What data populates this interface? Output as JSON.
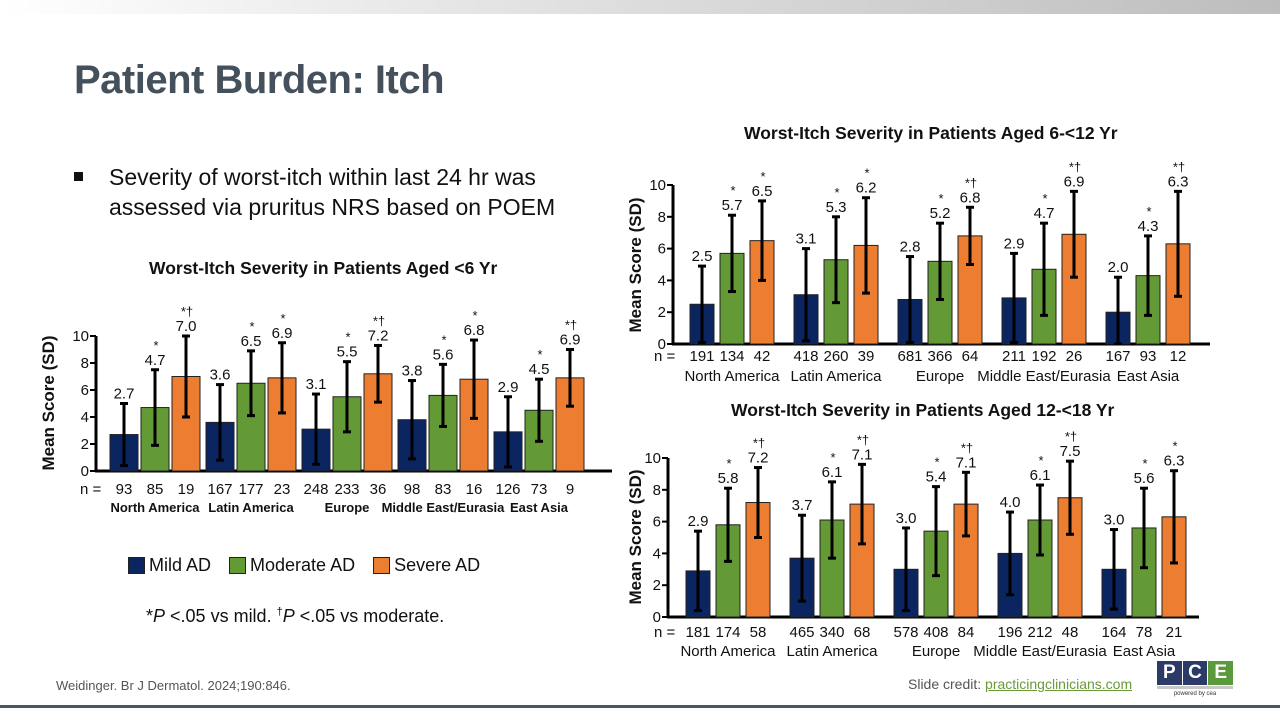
{
  "slide": {
    "title": "Patient Burden: Itch",
    "bullet": "Severity of worst-itch within last 24 hr was assessed via pruritus NRS based on POEM",
    "legend": [
      {
        "label": "Mild AD",
        "color": "#0b2561"
      },
      {
        "label": "Moderate AD",
        "color": "#649a36"
      },
      {
        "label": "Severe AD",
        "color": "#ed7d31"
      }
    ],
    "footnote": {
      "star": "*",
      "p1": "P",
      "t1": " <.05 vs mild. ",
      "dagger": "†",
      "p2": "P",
      "t2": " <.05 vs moderate."
    },
    "citation": "Weidinger. Br J Dermatol. 2024;190:846.",
    "credit_label": "Slide credit: ",
    "credit_link": "practicingclinicians.com",
    "logo": {
      "letters": [
        "P",
        "C",
        "E"
      ],
      "colors": [
        "#2b3a67",
        "#2b3a67",
        "#5a9a3c"
      ],
      "tagline": "powered by cea"
    }
  },
  "chart_data": [
    {
      "type": "bar",
      "title": "Worst-Itch Severity in Patients Aged <6 Yr",
      "ylabel": "Mean Score (SD)",
      "ylim": [
        0,
        10
      ],
      "yticks": [
        0,
        2,
        4,
        6,
        8,
        10
      ],
      "categories": [
        "North America",
        "Latin America",
        "Europe",
        "Middle East/Eurasia",
        "East Asia"
      ],
      "category_label_bold": true,
      "n_prefix": "n = ",
      "series": [
        {
          "name": "Mild AD",
          "values": [
            2.7,
            3.6,
            3.1,
            3.8,
            2.9
          ],
          "sd": [
            2.3,
            2.8,
            2.6,
            2.9,
            2.6
          ],
          "n": [
            93,
            167,
            248,
            98,
            126
          ],
          "sig": [
            "",
            "",
            "",
            "",
            ""
          ]
        },
        {
          "name": "Moderate AD",
          "values": [
            4.7,
            6.5,
            5.5,
            5.6,
            4.5
          ],
          "sd": [
            2.8,
            2.4,
            2.6,
            2.3,
            2.3
          ],
          "n": [
            85,
            177,
            233,
            83,
            73
          ],
          "sig": [
            "*",
            "*",
            "*",
            "*",
            "*"
          ]
        },
        {
          "name": "Severe AD",
          "values": [
            7.0,
            6.9,
            7.2,
            6.8,
            6.9
          ],
          "sd": [
            3.0,
            2.6,
            2.1,
            2.9,
            2.1
          ],
          "n": [
            19,
            23,
            36,
            16,
            9
          ],
          "sig": [
            "*†",
            "*",
            "*†",
            "*",
            "*†"
          ]
        }
      ]
    },
    {
      "type": "bar",
      "title": "Worst-Itch Severity in Patients Aged 6-<12 Yr",
      "ylabel": "Mean Score (SD)",
      "ylim": [
        0,
        10
      ],
      "yticks": [
        0,
        2,
        4,
        6,
        8,
        10
      ],
      "categories": [
        "North America",
        "Latin America",
        "Europe",
        "Middle East/Eurasia",
        "East Asia"
      ],
      "category_label_bold": false,
      "n_prefix": "n = ",
      "series": [
        {
          "name": "Mild AD",
          "values": [
            2.5,
            3.1,
            2.8,
            2.9,
            2.0
          ],
          "sd": [
            2.4,
            2.9,
            2.7,
            2.8,
            2.2
          ],
          "n": [
            191,
            418,
            681,
            211,
            167
          ],
          "sig": [
            "",
            "",
            "",
            "",
            ""
          ]
        },
        {
          "name": "Moderate AD",
          "values": [
            5.7,
            5.3,
            5.2,
            4.7,
            4.3
          ],
          "sd": [
            2.4,
            2.7,
            2.4,
            2.9,
            2.5
          ],
          "n": [
            134,
            260,
            366,
            192,
            93
          ],
          "sig": [
            "*",
            "*",
            "*",
            "*",
            "*"
          ]
        },
        {
          "name": "Severe AD",
          "values": [
            6.5,
            6.2,
            6.8,
            6.9,
            6.3
          ],
          "sd": [
            2.5,
            3.0,
            1.8,
            2.7,
            3.3
          ],
          "n": [
            42,
            39,
            64,
            26,
            12
          ],
          "sig": [
            "*",
            "*",
            "*†",
            "*†",
            "*†"
          ]
        }
      ]
    },
    {
      "type": "bar",
      "title": "Worst-Itch Severity in Patients Aged 12-<18 Yr",
      "ylabel": "Mean Score (SD)",
      "ylim": [
        0,
        10
      ],
      "yticks": [
        0,
        2,
        4,
        6,
        8,
        10
      ],
      "categories": [
        "North America",
        "Latin America",
        "Europe",
        "Middle East/Eurasia",
        "East Asia"
      ],
      "category_label_bold": false,
      "n_prefix": "n = ",
      "series": [
        {
          "name": "Mild AD",
          "values": [
            2.9,
            3.7,
            3.0,
            4.0,
            3.0
          ],
          "sd": [
            2.5,
            2.7,
            2.6,
            2.6,
            2.5
          ],
          "n": [
            181,
            465,
            578,
            196,
            164
          ],
          "sig": [
            "",
            "",
            "",
            "",
            ""
          ]
        },
        {
          "name": "Moderate AD",
          "values": [
            5.8,
            6.1,
            5.4,
            6.1,
            5.6
          ],
          "sd": [
            2.3,
            2.4,
            2.8,
            2.2,
            2.5
          ],
          "n": [
            174,
            340,
            408,
            212,
            78
          ],
          "sig": [
            "*",
            "*",
            "*",
            "*",
            "*"
          ]
        },
        {
          "name": "Severe AD",
          "values": [
            7.2,
            7.1,
            7.1,
            7.5,
            6.3
          ],
          "sd": [
            2.2,
            2.5,
            2.0,
            2.3,
            2.9
          ],
          "n": [
            58,
            68,
            84,
            48,
            21
          ],
          "sig": [
            "*†",
            "*†",
            "*†",
            "*†",
            "*"
          ]
        }
      ]
    }
  ]
}
